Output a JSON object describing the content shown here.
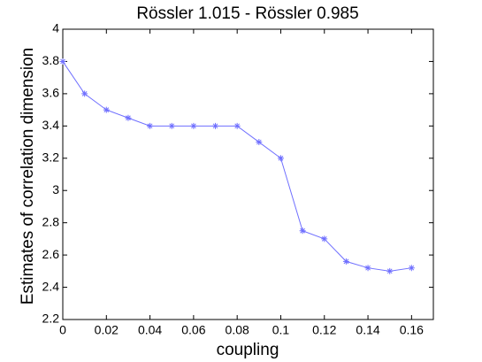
{
  "chart_data": {
    "type": "line",
    "title": "Rössler 1.015 - Rössler 0.985",
    "xlabel": "coupling",
    "ylabel": "Estimates of correlation dimension",
    "x": [
      0,
      0.01,
      0.02,
      0.03,
      0.04,
      0.05,
      0.06,
      0.07,
      0.08,
      0.09,
      0.1,
      0.11,
      0.12,
      0.13,
      0.14,
      0.15,
      0.16
    ],
    "series": [
      {
        "color": "#6f6fff",
        "values": [
          3.8,
          3.6,
          3.5,
          3.45,
          3.4,
          3.4,
          3.4,
          3.4,
          3.4,
          3.3,
          3.2,
          2.75,
          2.7,
          2.56,
          2.52,
          2.5,
          2.52
        ]
      }
    ],
    "xlim": [
      0,
      0.17
    ],
    "ylim": [
      2.2,
      4
    ],
    "xticks": [
      0,
      0.02,
      0.04,
      0.06,
      0.08,
      0.1,
      0.12,
      0.14,
      0.16
    ],
    "yticks": [
      2.2,
      2.4,
      2.6,
      2.8,
      3,
      3.2,
      3.4,
      3.6,
      3.8,
      4
    ]
  }
}
